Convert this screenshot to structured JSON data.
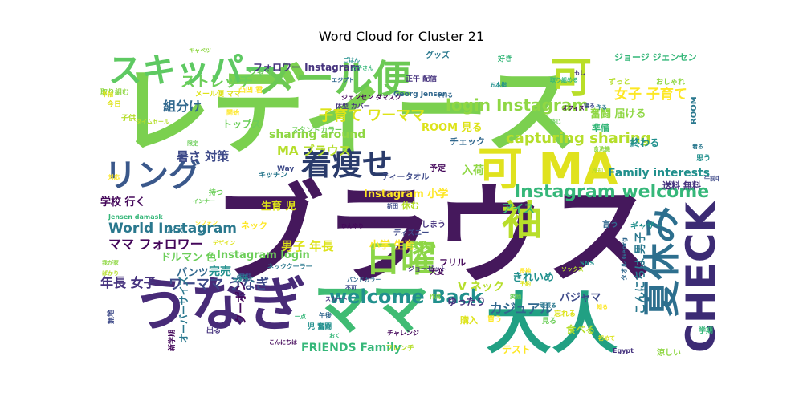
{
  "figure": {
    "title": "Word Cloud for Cluster 21"
  },
  "chart_data": {
    "type": "wordcloud",
    "title": "Word Cloud for Cluster 21",
    "words": [
      {
        "text": "ブラウス",
        "weight": 100
      },
      {
        "text": "レディース",
        "weight": 95
      },
      {
        "text": "大人",
        "weight": 60
      },
      {
        "text": "うなぎ",
        "weight": 55
      },
      {
        "text": "ママ",
        "weight": 55
      },
      {
        "text": "メール便",
        "weight": 45
      },
      {
        "text": "可",
        "weight": 42
      },
      {
        "text": "CHECK",
        "weight": 40
      },
      {
        "text": "スキッパー",
        "weight": 38
      },
      {
        "text": "可 MA",
        "weight": 38
      },
      {
        "text": "夏休み",
        "weight": 36
      },
      {
        "text": "日曜",
        "weight": 34
      },
      {
        "text": "袖",
        "weight": 34
      },
      {
        "text": "リング",
        "weight": 32
      },
      {
        "text": "着痩せ",
        "weight": 30
      },
      {
        "text": "welcome Back",
        "weight": 26
      },
      {
        "text": "Instagram welcome",
        "weight": 24
      },
      {
        "text": "login Instagram",
        "weight": 22
      },
      {
        "text": "capturing sharing",
        "weight": 20
      },
      {
        "text": "子育て ワーママ",
        "weight": 18
      },
      {
        "text": "女子 子育て",
        "weight": 16
      },
      {
        "text": "ストレッチ",
        "weight": 16
      },
      {
        "text": "World Instagram",
        "weight": 16
      },
      {
        "text": "ワーママ うなぎ",
        "weight": 15
      },
      {
        "text": "ママ フォロワー",
        "weight": 15
      },
      {
        "text": "年長 女子",
        "weight": 15
      },
      {
        "text": "組分け",
        "weight": 15
      },
      {
        "text": "Family interests",
        "weight": 14
      },
      {
        "text": "FRIENDS Family",
        "weight": 14
      },
      {
        "text": "sharing around",
        "weight": 14
      },
      {
        "text": "MA ブラウス",
        "weight": 14
      },
      {
        "text": "男子 年長",
        "weight": 13
      },
      {
        "text": "小学 生育",
        "weight": 13
      },
      {
        "text": "Instagram login",
        "weight": 13
      },
      {
        "text": "こんにちは 男子",
        "weight": 13
      },
      {
        "text": "暑さ 対策",
        "weight": 12
      },
      {
        "text": "学校 行く",
        "weight": 12
      },
      {
        "text": "フォロワー Instagram",
        "weight": 12
      },
      {
        "text": "カジュアル",
        "weight": 12
      },
      {
        "text": "完売",
        "weight": 12
      },
      {
        "text": "アイス",
        "weight": 12
      },
      {
        "text": "入荷",
        "weight": 12
      },
      {
        "text": "V ネック",
        "weight": 11
      },
      {
        "text": "ROOM 見る",
        "weight": 11
      },
      {
        "text": "Instagram 小学",
        "weight": 11
      },
      {
        "text": "ドルマン 色",
        "weight": 11
      },
      {
        "text": "オーバーサイズ",
        "weight": 11
      },
      {
        "text": "バジャマ",
        "weight": 11
      },
      {
        "text": "クーポン",
        "weight": 11
      },
      {
        "text": "ゆったり",
        "weight": 10
      },
      {
        "text": "パンツ",
        "weight": 10
      },
      {
        "text": "きれいめ",
        "weight": 10
      },
      {
        "text": "ジョージ ジェンセン",
        "weight": 10
      },
      {
        "text": "奮闘 届ける",
        "weight": 10
      },
      {
        "text": "食べる",
        "weight": 10
      },
      {
        "text": "購入",
        "weight": 10
      },
      {
        "text": "テスト",
        "weight": 10
      },
      {
        "text": "トップス",
        "weight": 9
      },
      {
        "text": "グッズ",
        "weight": 9
      },
      {
        "text": "ティータオル",
        "weight": 9
      },
      {
        "text": "フリル",
        "weight": 9
      },
      {
        "text": "送料 無料",
        "weight": 9
      },
      {
        "text": "チェック",
        "weight": 9
      },
      {
        "text": "終わる",
        "weight": 9
      },
      {
        "text": "準備",
        "weight": 9
      },
      {
        "text": "可愛い",
        "weight": 9
      },
      {
        "text": "休む",
        "weight": 9
      },
      {
        "text": "生育 児",
        "weight": 9
      },
      {
        "text": "ネック",
        "weight": 9
      },
      {
        "text": "シャツ",
        "weight": 9
      },
      {
        "text": "ROOM",
        "weight": 9
      },
      {
        "text": "Way",
        "weight": 8
      },
      {
        "text": "予定",
        "weight": 8
      },
      {
        "text": "しまう",
        "weight": 8
      },
      {
        "text": "言う",
        "weight": 8
      },
      {
        "text": "ギャザー",
        "weight": 8
      },
      {
        "text": "学期",
        "weight": 8
      },
      {
        "text": "涼しい",
        "weight": 8
      },
      {
        "text": "フレンチ",
        "weight": 7
      },
      {
        "text": "忘れる",
        "weight": 7
      },
      {
        "text": "買う",
        "weight": 7
      },
      {
        "text": "見る",
        "weight": 7
      },
      {
        "text": "キッチン",
        "weight": 7
      },
      {
        "text": "ディズニー",
        "weight": 7
      },
      {
        "text": "大変",
        "weight": 7
      },
      {
        "text": "正午 配信",
        "weight": 7
      },
      {
        "text": "Georg Jensen",
        "weight": 7
      },
      {
        "text": "思う",
        "weight": 7
      },
      {
        "text": "好き",
        "weight": 7
      },
      {
        "text": "おしゃれ",
        "weight": 7
      },
      {
        "text": "ずっと",
        "weight": 6
      },
      {
        "text": "メール便 ママ",
        "weight": 6
      },
      {
        "text": "凸凹 君",
        "weight": 6
      },
      {
        "text": "スタンドカラー",
        "weight": 6
      },
      {
        "text": "ネッククーラー",
        "weight": 6
      },
      {
        "text": "無理",
        "weight": 6
      },
      {
        "text": "チャレンジ",
        "weight": 6
      },
      {
        "text": "Egypt",
        "weight": 6
      },
      {
        "text": "タオル Georg",
        "weight": 6
      },
      {
        "text": "SNS",
        "weight": 6
      },
      {
        "text": "Jensen damask",
        "weight": 6
      },
      {
        "text": "取り組む",
        "weight": 6
      },
      {
        "text": "子供",
        "weight": 6
      },
      {
        "text": "今日",
        "weight": 6
      },
      {
        "text": "開始",
        "weight": 6
      },
      {
        "text": "持つ",
        "weight": 6
      },
      {
        "text": "サイズ",
        "weight": 6
      },
      {
        "text": "無地",
        "weight": 6
      },
      {
        "text": "新学期",
        "weight": 6
      },
      {
        "text": "出る",
        "weight": 6
      },
      {
        "text": "午後",
        "weight": 6
      },
      {
        "text": "児 奮闘",
        "weight": 6
      },
      {
        "text": "一点",
        "weight": 5
      },
      {
        "text": "食洗機",
        "weight": 5
      },
      {
        "text": "冷却",
        "weight": 5
      },
      {
        "text": "初めて",
        "weight": 5
      },
      {
        "text": "知る",
        "weight": 5
      },
      {
        "text": "感じ",
        "weight": 5
      },
      {
        "text": "作る",
        "weight": 5
      },
      {
        "text": "寝る",
        "weight": 5
      },
      {
        "text": "オフィス",
        "weight": 5
      },
      {
        "text": "もし",
        "weight": 5
      },
      {
        "text": "エジプト",
        "weight": 5
      },
      {
        "text": "ごはん",
        "weight": 5
      },
      {
        "text": "お子さん",
        "weight": 5
      },
      {
        "text": "キャベツ",
        "weight": 5
      },
      {
        "text": "タイムセール",
        "weight": 5
      },
      {
        "text": "デザイン",
        "weight": 5
      },
      {
        "text": "シフォン",
        "weight": 5
      },
      {
        "text": "インナー",
        "weight": 5
      },
      {
        "text": "結果",
        "weight": 5
      },
      {
        "text": "不可",
        "weight": 5
      },
      {
        "text": "こんにちは",
        "weight": 5
      },
      {
        "text": "スカート",
        "weight": 5
      },
      {
        "text": "バンドカラー",
        "weight": 5
      },
      {
        "text": "ちょっと",
        "weight": 5
      },
      {
        "text": "おく",
        "weight": 5
      },
      {
        "text": "作成",
        "weight": 5
      },
      {
        "text": "ソックス",
        "weight": 5
      },
      {
        "text": "予約",
        "weight": 5
      },
      {
        "text": "長袖",
        "weight": 5
      },
      {
        "text": "笑顔",
        "weight": 5
      },
      {
        "text": "頑張る",
        "weight": 5
      },
      {
        "text": "新田",
        "weight": 5
      },
      {
        "text": "ひんやり",
        "weight": 5
      },
      {
        "text": "ジョーゼット",
        "weight": 5
      },
      {
        "text": "くれる",
        "weight": 5
      },
      {
        "text": "五本指",
        "weight": 5
      },
      {
        "text": "取り組める",
        "weight": 5
      },
      {
        "text": "我が家",
        "weight": 5
      },
      {
        "text": "ばかり",
        "weight": 5
      },
      {
        "text": "半袖",
        "weight": 5
      },
      {
        "text": "対応",
        "weight": 5
      },
      {
        "text": "限定",
        "weight": 5
      },
      {
        "text": "着る",
        "weight": 5
      },
      {
        "text": "午前中",
        "weight": 5
      },
      {
        "text": "ジェンセン ダマスク",
        "weight": 5
      },
      {
        "text": "体型 カバー",
        "weight": 5
      }
    ]
  }
}
